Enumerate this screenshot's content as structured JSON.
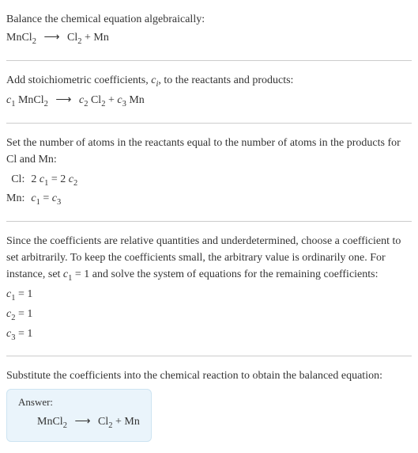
{
  "section1": {
    "title": "Balance the chemical equation algebraically:",
    "eq_lhs": "MnCl",
    "eq_lhs_sub": "2",
    "arrow": "⟶",
    "eq_rhs1": "Cl",
    "eq_rhs1_sub": "2",
    "plus": " + ",
    "eq_rhs2": "Mn"
  },
  "section2": {
    "text_a": "Add stoichiometric coefficients, ",
    "ci": "c",
    "ci_sub": "i",
    "text_b": ", to the reactants and products:",
    "c1": "c",
    "c1_sub": "1",
    "sp1": " MnCl",
    "sp1_sub": "2",
    "arrow": "⟶",
    "c2": "c",
    "c2_sub": "2",
    "sp2": " Cl",
    "sp2_sub": "2",
    "plus": " + ",
    "c3": "c",
    "c3_sub": "3",
    "sp3": " Mn"
  },
  "section3": {
    "text": "Set the number of atoms in the reactants equal to the number of atoms in the products for Cl and Mn:",
    "rows": [
      {
        "label": "Cl:",
        "lhs_coef": "2 ",
        "lhs_c": "c",
        "lhs_sub": "1",
        "eq": " = ",
        "rhs_coef": "2 ",
        "rhs_c": "c",
        "rhs_sub": "2"
      },
      {
        "label": "Mn:",
        "lhs_coef": "",
        "lhs_c": "c",
        "lhs_sub": "1",
        "eq": " = ",
        "rhs_coef": "",
        "rhs_c": "c",
        "rhs_sub": "3"
      }
    ]
  },
  "section4": {
    "text_a": "Since the coefficients are relative quantities and underdetermined, choose a coefficient to set arbitrarily. To keep the coefficients small, the arbitrary value is ordinarily one. For instance, set ",
    "c": "c",
    "c_sub": "1",
    "text_b": " = 1 and solve the system of equations for the remaining coefficients:",
    "assigns": [
      {
        "c": "c",
        "sub": "1",
        "val": " = 1"
      },
      {
        "c": "c",
        "sub": "2",
        "val": " = 1"
      },
      {
        "c": "c",
        "sub": "3",
        "val": " = 1"
      }
    ]
  },
  "section5": {
    "text": "Substitute the coefficients into the chemical reaction to obtain the balanced equation:",
    "answer_label": "Answer:",
    "eq_lhs": "MnCl",
    "eq_lhs_sub": "2",
    "arrow": "⟶",
    "eq_rhs1": "Cl",
    "eq_rhs1_sub": "2",
    "plus": " + ",
    "eq_rhs2": "Mn"
  }
}
